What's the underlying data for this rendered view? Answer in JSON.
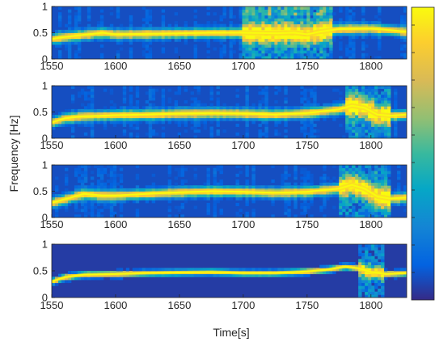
{
  "chart_data": {
    "type": "heatmap",
    "xlabel": "Time[s]",
    "ylabel": "Frequency [Hz]",
    "xlim": [
      1550,
      1828
    ],
    "ylim": [
      0,
      1
    ],
    "x_ticks": [
      "1550",
      "1600",
      "1650",
      "1700",
      "1750",
      "1800"
    ],
    "y_ticks": [
      "0",
      "0.5",
      "1"
    ],
    "colormap": "parula",
    "colorbar": true,
    "panels": [
      {
        "name": "",
        "ridge": {
          "time": [
            1550,
            1560,
            1575,
            1590,
            1600,
            1625,
            1650,
            1675,
            1700,
            1725,
            1740,
            1750,
            1760,
            1775,
            1800,
            1815,
            1828
          ],
          "frequency": [
            0.38,
            0.42,
            0.46,
            0.5,
            0.47,
            0.48,
            0.49,
            0.5,
            0.5,
            0.49,
            0.5,
            0.47,
            0.52,
            0.57,
            0.58,
            0.55,
            0.52
          ]
        },
        "noisy_region": [
          1700,
          1770
        ]
      },
      {
        "name": "",
        "ridge": {
          "time": [
            1550,
            1560,
            1575,
            1590,
            1600,
            1625,
            1650,
            1675,
            1700,
            1725,
            1750,
            1775,
            1785,
            1795,
            1805,
            1815,
            1828
          ],
          "frequency": [
            0.3,
            0.38,
            0.42,
            0.43,
            0.44,
            0.45,
            0.47,
            0.48,
            0.47,
            0.45,
            0.48,
            0.55,
            0.62,
            0.58,
            0.45,
            0.43,
            0.45
          ]
        },
        "noisy_region": [
          1780,
          1815
        ]
      },
      {
        "name": "",
        "ridge": {
          "time": [
            1550,
            1565,
            1575,
            1590,
            1600,
            1625,
            1650,
            1675,
            1700,
            1725,
            1750,
            1775,
            1785,
            1795,
            1805,
            1815,
            1828
          ],
          "frequency": [
            0.28,
            0.38,
            0.45,
            0.42,
            0.42,
            0.45,
            0.48,
            0.5,
            0.49,
            0.47,
            0.49,
            0.55,
            0.62,
            0.55,
            0.4,
            0.36,
            0.38
          ]
        },
        "noisy_region": [
          1775,
          1815
        ]
      },
      {
        "name": "",
        "ridge": {
          "time": [
            1550,
            1560,
            1575,
            1600,
            1625,
            1650,
            1675,
            1700,
            1725,
            1750,
            1765,
            1780,
            1790,
            1800,
            1812,
            1828
          ],
          "frequency": [
            0.3,
            0.38,
            0.43,
            0.44,
            0.46,
            0.47,
            0.48,
            0.46,
            0.46,
            0.49,
            0.52,
            0.58,
            0.55,
            0.48,
            0.44,
            0.46
          ]
        },
        "noisy_region": [
          1790,
          1810
        ]
      }
    ]
  }
}
